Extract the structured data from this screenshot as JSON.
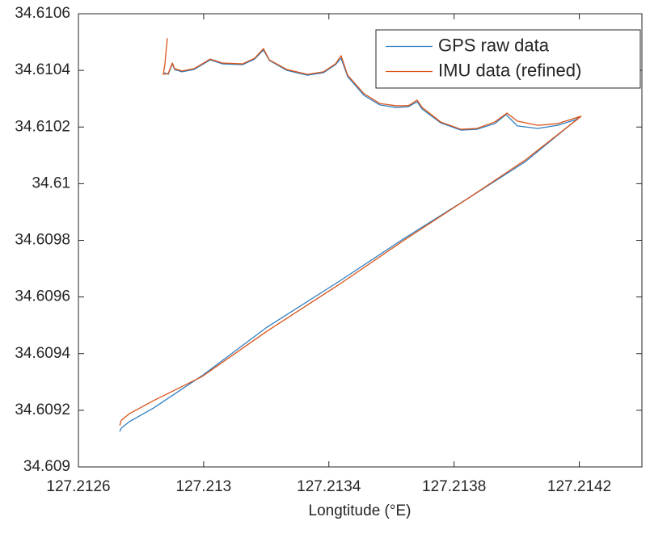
{
  "chart_data": {
    "type": "line",
    "xlabel": "Longtitude (°E)",
    "xlim": [
      127.2126,
      127.2144
    ],
    "xticks": [
      127.2126,
      127.213,
      127.2134,
      127.2138,
      127.2142
    ],
    "ylim": [
      34.609,
      34.6106
    ],
    "yticks": [
      34.609,
      34.6092,
      34.6094,
      34.6096,
      34.6098,
      34.61,
      34.6102,
      34.6104,
      34.6106
    ],
    "legend": "northeast",
    "series": [
      {
        "name": "GPS raw data",
        "color": "#2f7fc1",
        "x": [
          127.212874,
          127.212887,
          127.2129,
          127.212907,
          127.212931,
          127.212969,
          127.213021,
          127.21306,
          127.213124,
          127.213163,
          127.213191,
          127.21321,
          127.213266,
          127.213331,
          127.213383,
          127.213421,
          127.213439,
          127.21346,
          127.213512,
          127.213563,
          127.213615,
          127.213654,
          127.213682,
          127.213698,
          127.213757,
          127.213822,
          127.213873,
          127.21393,
          127.213966,
          127.214002,
          127.214067,
          127.214131,
          127.214188,
          127.214201,
          127.214028,
          127.213847,
          127.213641,
          127.213434,
          127.213202,
          127.212995,
          127.21284,
          127.212763,
          127.212737,
          127.212732
        ],
        "values": [
          34.610392,
          34.610386,
          34.610423,
          34.610403,
          34.610395,
          34.610403,
          34.610437,
          34.610423,
          34.61042,
          34.61044,
          34.610472,
          34.610435,
          34.6104,
          34.610383,
          34.610392,
          34.61042,
          34.610443,
          34.610378,
          34.610312,
          34.610278,
          34.610269,
          34.610272,
          34.610289,
          34.610263,
          34.610215,
          34.610189,
          34.610192,
          34.610212,
          34.610244,
          34.610204,
          34.610195,
          34.610206,
          34.610226,
          34.610235,
          34.610078,
          34.60995,
          34.609807,
          34.609656,
          34.609493,
          34.609322,
          34.609208,
          34.60916,
          34.609137,
          34.609125
        ]
      },
      {
        "name": "IMU data (refined)",
        "color": "#d95319",
        "x": [
          127.212884,
          127.212876,
          127.212871,
          127.212887,
          127.2129,
          127.212907,
          127.212931,
          127.212969,
          127.213021,
          127.21306,
          127.213124,
          127.213163,
          127.213191,
          127.21321,
          127.213266,
          127.213331,
          127.213383,
          127.213421,
          127.213439,
          127.21346,
          127.213512,
          127.213563,
          127.213615,
          127.213654,
          127.213682,
          127.213698,
          127.213757,
          127.213822,
          127.213873,
          127.21393,
          127.213969,
          127.214002,
          127.214067,
          127.214131,
          127.214188,
          127.214206,
          127.214028,
          127.213847,
          127.213641,
          127.213434,
          127.213202,
          127.212995,
          127.21284,
          127.212763,
          127.212737,
          127.212732
        ],
        "values": [
          34.610514,
          34.61042,
          34.610386,
          34.610389,
          34.610426,
          34.610406,
          34.610398,
          34.610406,
          34.61044,
          34.610426,
          34.610423,
          34.610443,
          34.610477,
          34.610437,
          34.610403,
          34.610386,
          34.610395,
          34.610423,
          34.610452,
          34.610383,
          34.610318,
          34.610283,
          34.610275,
          34.610275,
          34.610295,
          34.610269,
          34.610218,
          34.610192,
          34.610195,
          34.610218,
          34.610249,
          34.610221,
          34.610206,
          34.610212,
          34.610232,
          34.610238,
          34.610084,
          34.60995,
          34.609801,
          34.609645,
          34.609479,
          34.609319,
          34.609234,
          34.609188,
          34.609165,
          34.609146
        ]
      }
    ]
  }
}
